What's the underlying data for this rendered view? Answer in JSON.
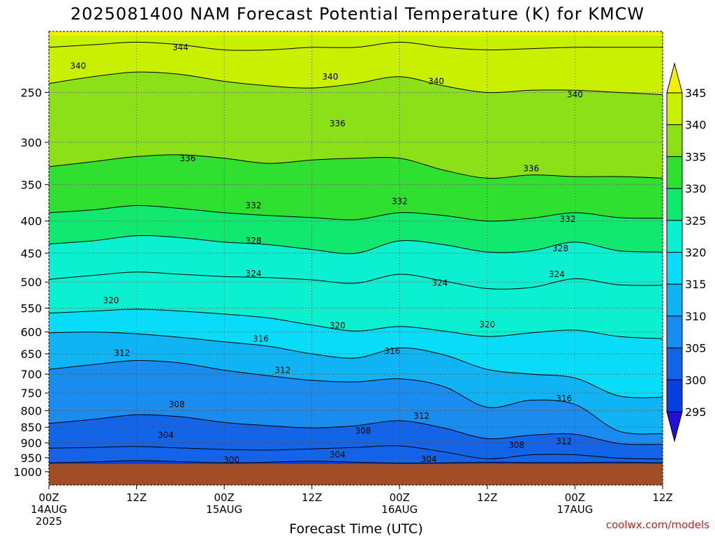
{
  "chart_data": {
    "type": "heatmap",
    "title": "2025081400 NAM Forecast Potential Temperature (K) for KMCW",
    "xlabel": "Forecast Time (UTC)",
    "ylabel": "",
    "y_axis": {
      "ticks": [
        250,
        300,
        350,
        400,
        450,
        500,
        550,
        600,
        650,
        700,
        750,
        800,
        850,
        900,
        950,
        1000
      ],
      "range": [
        200,
        1050
      ],
      "scale": "pressure (log)"
    },
    "x_axis": {
      "range_hours": [
        0,
        84
      ],
      "ticks": [
        {
          "hour": 0,
          "label": "00Z",
          "date": "14AUG",
          "year": "2025"
        },
        {
          "hour": 12,
          "label": "12Z",
          "date": "",
          "year": ""
        },
        {
          "hour": 24,
          "label": "00Z",
          "date": "15AUG",
          "year": ""
        },
        {
          "hour": 36,
          "label": "12Z",
          "date": "",
          "year": ""
        },
        {
          "hour": 48,
          "label": "00Z",
          "date": "16AUG",
          "year": ""
        },
        {
          "hour": 60,
          "label": "12Z",
          "date": "",
          "year": ""
        },
        {
          "hour": 72,
          "label": "00Z",
          "date": "17AUG",
          "year": ""
        },
        {
          "hour": 84,
          "label": "12Z",
          "date": "",
          "year": ""
        }
      ]
    },
    "colorbar": {
      "levels": [
        295,
        300,
        305,
        310,
        315,
        320,
        325,
        330,
        335,
        340,
        345
      ],
      "colors": [
        "#2010d8",
        "#0840e0",
        "#1464e8",
        "#1a8cf0",
        "#10b4f4",
        "#08dcf8",
        "#0af0d0",
        "#10e870",
        "#30e030",
        "#8ce018",
        "#c8f000",
        "#f0f000"
      ]
    },
    "ground_level_hpa": 972,
    "ground_color": "#a24e24",
    "isentropes": [
      {
        "level": 300,
        "p": [
          968,
          965,
          960,
          964,
          968,
          966,
          962,
          966,
          969,
          968,
          966,
          967,
          967,
          966,
          968
        ]
      },
      {
        "level": 304,
        "p": [
          918,
          915,
          912,
          917,
          922,
          924,
          920,
          915,
          910,
          930,
          954,
          940,
          940,
          952,
          955
        ]
      },
      {
        "level": 308,
        "p": [
          838,
          826,
          812,
          818,
          835,
          845,
          852,
          845,
          830,
          852,
          886,
          875,
          872,
          902,
          905
        ]
      },
      {
        "level": 312,
        "p": [
          688,
          676,
          666,
          672,
          690,
          704,
          716,
          720,
          712,
          732,
          790,
          770,
          782,
          862,
          870
        ]
      },
      {
        "level": 316,
        "p": [
          602,
          600,
          604,
          612,
          622,
          632,
          650,
          660,
          636,
          652,
          688,
          700,
          710,
          758,
          762
        ]
      },
      {
        "level": 320,
        "p": [
          560,
          556,
          552,
          556,
          562,
          570,
          585,
          598,
          588,
          598,
          610,
          602,
          596,
          610,
          615
        ]
      },
      {
        "level": 324,
        "p": [
          495,
          488,
          482,
          486,
          490,
          492,
          496,
          502,
          486,
          498,
          512,
          510,
          494,
          505,
          506
        ]
      },
      {
        "level": 328,
        "p": [
          435,
          430,
          422,
          425,
          432,
          436,
          444,
          450,
          430,
          436,
          448,
          446,
          432,
          446,
          448
        ]
      },
      {
        "level": 332,
        "p": [
          388,
          384,
          378,
          382,
          388,
          392,
          395,
          398,
          388,
          392,
          400,
          396,
          388,
          395,
          396
        ]
      },
      {
        "level": 336,
        "p": [
          328,
          322,
          316,
          314,
          318,
          324,
          320,
          318,
          318,
          332,
          342,
          338,
          340,
          340,
          342
        ]
      },
      {
        "level": 340,
        "p": [
          242,
          236,
          232,
          234,
          240,
          244,
          246,
          242,
          236,
          244,
          250,
          248,
          248,
          250,
          252
        ]
      },
      {
        "level": 344,
        "p": [
          212,
          210,
          208,
          210,
          214,
          214,
          212,
          212,
          208,
          212,
          214,
          213,
          212,
          212,
          212
        ]
      }
    ],
    "contour_labels": [
      {
        "value": "344",
        "hour": 18,
        "p": 212
      },
      {
        "value": "340",
        "hour": 4,
        "p": 227
      },
      {
        "value": "340",
        "hour": 38.5,
        "p": 236
      },
      {
        "value": "340",
        "hour": 53,
        "p": 240
      },
      {
        "value": "340",
        "hour": 72,
        "p": 252
      },
      {
        "value": "336",
        "hour": 39.5,
        "p": 280
      },
      {
        "value": "336",
        "hour": 19,
        "p": 318
      },
      {
        "value": "336",
        "hour": 66,
        "p": 330
      },
      {
        "value": "332",
        "hour": 28,
        "p": 378
      },
      {
        "value": "332",
        "hour": 48,
        "p": 372
      },
      {
        "value": "332",
        "hour": 71,
        "p": 397
      },
      {
        "value": "328",
        "hour": 28,
        "p": 430
      },
      {
        "value": "328",
        "hour": 70,
        "p": 442
      },
      {
        "value": "324",
        "hour": 28,
        "p": 485
      },
      {
        "value": "324",
        "hour": 53.5,
        "p": 502
      },
      {
        "value": "324",
        "hour": 69.5,
        "p": 486
      },
      {
        "value": "320",
        "hour": 8.5,
        "p": 535
      },
      {
        "value": "320",
        "hour": 39.5,
        "p": 586
      },
      {
        "value": "320",
        "hour": 60,
        "p": 584
      },
      {
        "value": "316",
        "hour": 29,
        "p": 615
      },
      {
        "value": "316",
        "hour": 47,
        "p": 643
      },
      {
        "value": "312",
        "hour": 10,
        "p": 648
      },
      {
        "value": "312",
        "hour": 32,
        "p": 690
      },
      {
        "value": "312",
        "hour": 51,
        "p": 816
      },
      {
        "value": "312",
        "hour": 70.5,
        "p": 895
      },
      {
        "value": "316",
        "hour": 70.5,
        "p": 765
      },
      {
        "value": "308",
        "hour": 17.5,
        "p": 782
      },
      {
        "value": "308",
        "hour": 43,
        "p": 862
      },
      {
        "value": "308",
        "hour": 64,
        "p": 908
      },
      {
        "value": "304",
        "hour": 16,
        "p": 875
      },
      {
        "value": "304",
        "hour": 39.5,
        "p": 940
      },
      {
        "value": "304",
        "hour": 52,
        "p": 955
      },
      {
        "value": "300",
        "hour": 25,
        "p": 958
      }
    ]
  },
  "footer": "coolwx.com/models"
}
